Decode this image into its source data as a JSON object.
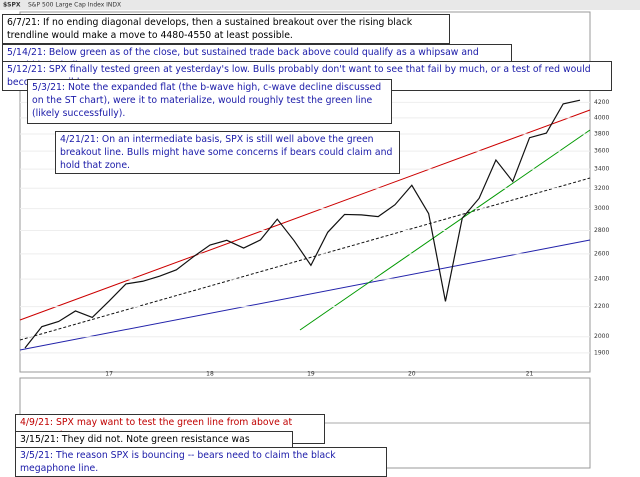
{
  "chart_data": {
    "type": "line",
    "title": "$SPX",
    "subtitle": "S&P 500 Large Cap Index  INDX",
    "categories": [
      null,
      null,
      null,
      null,
      null,
      "17",
      null,
      null,
      null,
      null,
      null,
      "18",
      null,
      null,
      null,
      null,
      null,
      "19",
      null,
      null,
      null,
      null,
      null,
      "20",
      null,
      null,
      null,
      null,
      null,
      null,
      "21",
      null,
      null,
      null
    ],
    "series": [
      {
        "name": "$SPX",
        "color": "#111111",
        "values": [
          1930,
          2065,
          2099,
          2170,
          2126,
          2239,
          2364,
          2384,
          2423,
          2472,
          2575,
          2674,
          2714,
          2648,
          2718,
          2902,
          2711,
          2507,
          2784,
          2946,
          2942,
          2926,
          3038,
          3231,
          2954,
          2237,
          2912,
          3100,
          3500,
          3270,
          3756,
          3811,
          4181,
          4230
        ]
      }
    ],
    "ylim": [
      1800,
      4300
    ],
    "log_scale": true,
    "yticks": [
      1900,
      2000,
      2200,
      2400,
      2600,
      2800,
      3000,
      3200,
      3400,
      3600,
      3800,
      4000,
      4200
    ]
  },
  "annotations": [
    {
      "text": "6/7/21:  If no ending diagonal develops, then a sustained breakout over the rising black trendline would make a move to 4480-4550 at least possible.",
      "color": "#000000"
    },
    {
      "text": "5/14/21:  Below green as of the close, but sustained trade back above could qualify as a whipsaw and would help bulls.",
      "color": "#1a1aa8"
    },
    {
      "text": "5/12/21:  SPX finally tested green at yesterday's low.  Bulls probably don't want to see that fail by much, or a test of red would become possible.",
      "color": "#1a1aa8"
    },
    {
      "text": "5/3/21:  Note the expanded flat (the b-wave high, c-wave decline discussed on the ST chart), were it to materialize, would roughly test the green line (likely successfully).",
      "color": "#1a1aa8"
    },
    {
      "text": "4/21/21:  On an intermediate basis, SPX is still well above the green breakout line.  Bulls might have some concerns if bears could claim and hold that zone.",
      "color": "#1a1aa8"
    },
    {
      "text": "4/9/21:  SPX may want to test the green line from above at some point.",
      "color": "#c00000"
    },
    {
      "text": "3/15/21:  They did not.  Note green resistance was tagged.",
      "color": "#000000"
    },
    {
      "text": "3/5/21:  The reason SPX is bouncing -- bears need to claim the black megaphone line.",
      "color": "#1a1aa8"
    }
  ]
}
